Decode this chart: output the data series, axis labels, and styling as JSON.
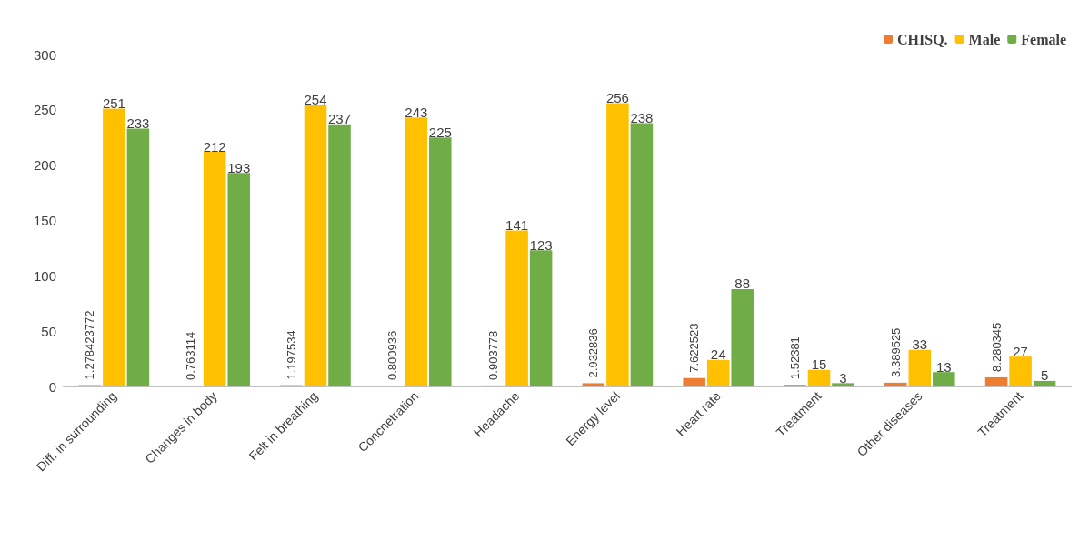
{
  "chart_data": {
    "type": "bar",
    "categories": [
      "Diff. in surrounding",
      "Changes in body",
      "Felt in breathing",
      "Concnetration",
      "Headache",
      "Energy level",
      "Heart rate",
      "Treatment",
      "Other diseases",
      "Treatment"
    ],
    "series": [
      {
        "name": "CHISQ.",
        "color": "#ed7d31",
        "values": [
          1.278423772,
          0.763114,
          1.197534,
          0.800936,
          0.903778,
          2.932836,
          7.622523,
          1.52381,
          3.389525,
          8.280345
        ]
      },
      {
        "name": "Male",
        "color": "#ffc000",
        "values": [
          251,
          212,
          254,
          243,
          141,
          256,
          24,
          15,
          33,
          27
        ]
      },
      {
        "name": "Female",
        "color": "#70ad47",
        "values": [
          233,
          193,
          237,
          225,
          123,
          238,
          88,
          3,
          13,
          5
        ]
      }
    ],
    "ylim": [
      0,
      300
    ],
    "yticks": [
      0,
      50,
      100,
      150,
      200,
      250,
      300
    ],
    "grid": false,
    "legend": "top right",
    "data_labels": true
  }
}
